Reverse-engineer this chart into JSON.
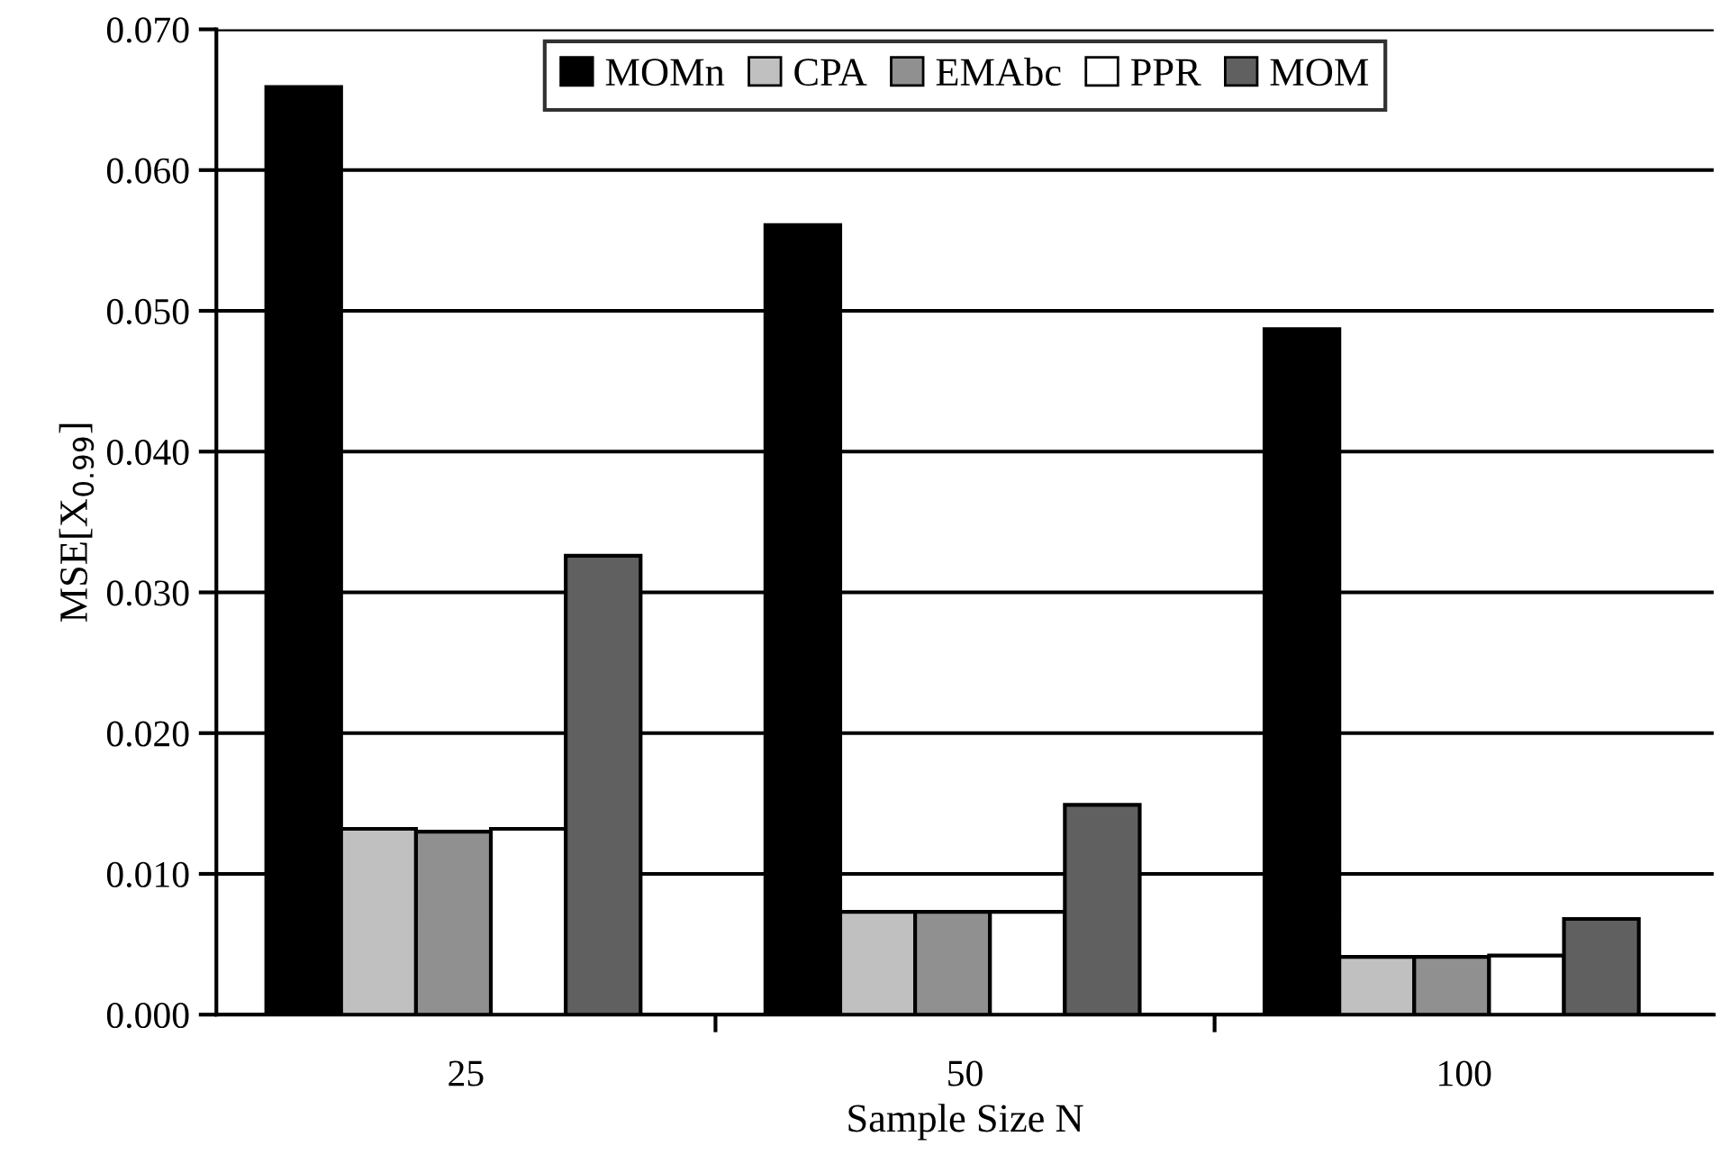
{
  "chart_data": {
    "type": "bar",
    "xlabel": "Sample Size N",
    "ylabel": "MSE[X$_{0.99}$]",
    "categories": [
      "25",
      "50",
      "100"
    ],
    "series": [
      {
        "name": "MOMn",
        "color": "#000000",
        "values": [
          0.0659,
          0.0561,
          0.0487
        ]
      },
      {
        "name": "CPA",
        "color": "#c0c0c0",
        "values": [
          0.0132,
          0.0073,
          0.0041
        ]
      },
      {
        "name": "EMAbc",
        "color": "#909090",
        "values": [
          0.013,
          0.0073,
          0.0041
        ]
      },
      {
        "name": "PPR",
        "color": "#ffffff",
        "values": [
          0.0132,
          0.0073,
          0.0042
        ]
      },
      {
        "name": "MOM",
        "color": "#606060",
        "values": [
          0.0326,
          0.0149,
          0.0068
        ]
      }
    ],
    "ylim": [
      0,
      0.07
    ],
    "yticks": [
      {
        "value": 0,
        "label": "0.000"
      },
      {
        "value": 0.01,
        "label": "0.010"
      },
      {
        "value": 0.02,
        "label": "0.020"
      },
      {
        "value": 0.03,
        "label": "0.030"
      },
      {
        "value": 0.04,
        "label": "0.040"
      },
      {
        "value": 0.05,
        "label": "0.050"
      },
      {
        "value": 0.06,
        "label": "0.060"
      },
      {
        "value": 0.07,
        "label": "0.070"
      }
    ],
    "grid": "y",
    "legend": "top"
  }
}
